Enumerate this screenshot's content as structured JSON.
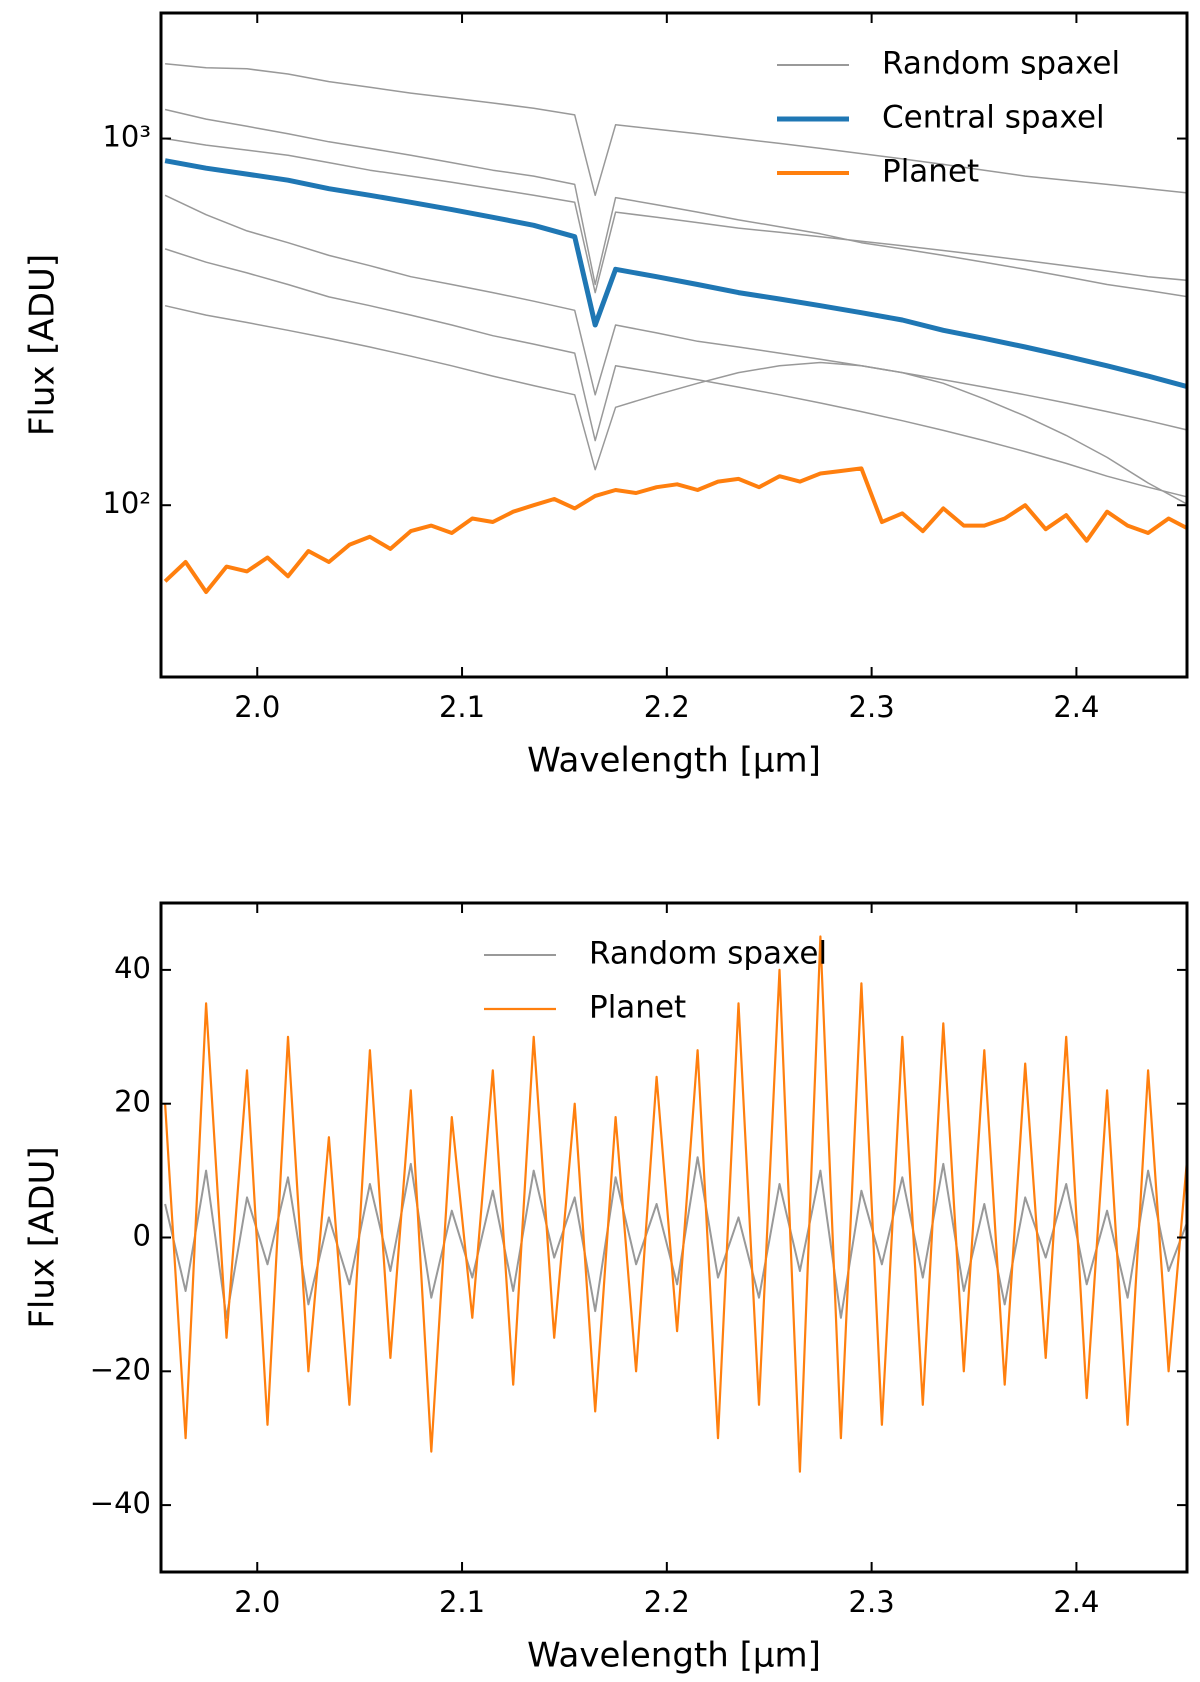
{
  "chart_data": [
    {
      "type": "line",
      "ylabel": "Flux [ADU]",
      "xlabel": "Wavelength [µm]",
      "log_y": true,
      "legend": "upper right",
      "xlim": [
        1.953,
        2.454
      ],
      "ylim": [
        34,
        2200
      ],
      "xticks": [
        {
          "value": 2,
          "label": "2.0"
        },
        2.1,
        2.2,
        2.3,
        2.4
      ],
      "yticks": [
        {
          "value": 100,
          "label": "10²"
        },
        {
          "value": 1000,
          "label": "10³"
        }
      ],
      "x": [
        1.955,
        1.975,
        1.995,
        2.015,
        2.035,
        2.055,
        2.075,
        2.095,
        2.115,
        2.135,
        2.155,
        2.165,
        2.175,
        2.195,
        2.215,
        2.235,
        2.255,
        2.275,
        2.295,
        2.315,
        2.335,
        2.355,
        2.375,
        2.395,
        2.415,
        2.435,
        2.455
      ],
      "series": [
        {
          "name": "Random spaxel",
          "color": "#999999",
          "values": [
            [
              1600,
              1560,
              1550,
              1500,
              1430,
              1380,
              1330,
              1290,
              1250,
              1210,
              1160,
              700,
              1090,
              1060,
              1030,
              1000,
              970,
              940,
              910,
              880,
              850,
              820,
              790,
              770,
              750,
              730,
              710
            ],
            [
              1200,
              1130,
              1080,
              1030,
              980,
              940,
              900,
              860,
              820,
              790,
              750,
              400,
              690,
              660,
              630,
              600,
              575,
              550,
              520,
              500,
              480,
              460,
              440,
              420,
              400,
              385,
              370
            ],
            [
              1000,
              960,
              930,
              900,
              860,
              820,
              790,
              760,
              730,
              700,
              670,
              380,
              630,
              610,
              590,
              570,
              555,
              540,
              525,
              510,
              495,
              480,
              465,
              450,
              435,
              420,
              410
            ],
            [
              700,
              620,
              560,
              520,
              480,
              450,
              420,
              400,
              380,
              360,
              340,
              200,
              310,
              295,
              280,
              270,
              260,
              250,
              240,
              230,
              220,
              210,
              200,
              190,
              180,
              170,
              160
            ],
            [
              500,
              460,
              430,
              400,
              370,
              350,
              330,
              310,
              290,
              275,
              260,
              150,
              240,
              230,
              220,
              210,
              200,
              190,
              180,
              170,
              160,
              150,
              140,
              130,
              120,
              112,
              105
            ],
            [
              350,
              330,
              315,
              300,
              285,
              270,
              255,
              240,
              225,
              212,
              200,
              125,
              185,
              200,
              215,
              230,
              240,
              245,
              240,
              230,
              215,
              195,
              175,
              155,
              135,
              115,
              100
            ]
          ]
        },
        {
          "name": "Central spaxel",
          "color": "#1f77b4",
          "values": [
            870,
            830,
            800,
            770,
            730,
            700,
            670,
            640,
            610,
            580,
            540,
            310,
            440,
            420,
            400,
            380,
            365,
            350,
            335,
            320,
            300,
            285,
            270,
            255,
            240,
            225,
            210
          ]
        },
        {
          "name": "Planet",
          "color": "#ff7f0e",
          "x": [
            1.955,
            1.965,
            1.975,
            1.985,
            1.995,
            2.005,
            2.015,
            2.025,
            2.035,
            2.045,
            2.055,
            2.065,
            2.075,
            2.085,
            2.095,
            2.105,
            2.115,
            2.125,
            2.135,
            2.145,
            2.155,
            2.165,
            2.175,
            2.185,
            2.195,
            2.205,
            2.215,
            2.225,
            2.235,
            2.245,
            2.255,
            2.265,
            2.275,
            2.285,
            2.295,
            2.305,
            2.315,
            2.325,
            2.335,
            2.345,
            2.355,
            2.365,
            2.375,
            2.385,
            2.395,
            2.405,
            2.415,
            2.425,
            2.435,
            2.445,
            2.455
          ],
          "values": [
            62,
            70,
            58,
            68,
            66,
            72,
            64,
            75,
            70,
            78,
            82,
            76,
            85,
            88,
            84,
            92,
            90,
            96,
            100,
            104,
            98,
            106,
            110,
            108,
            112,
            114,
            110,
            116,
            118,
            112,
            120,
            116,
            122,
            124,
            126,
            90,
            95,
            85,
            98,
            88,
            88,
            92,
            100,
            86,
            94,
            80,
            96,
            88,
            84,
            92,
            86
          ]
        }
      ]
    },
    {
      "type": "line",
      "ylabel": "Flux [ADU]",
      "xlabel": "Wavelength [µm]",
      "legend": "upper center",
      "xlim": [
        1.953,
        2.454
      ],
      "ylim": [
        -50,
        50
      ],
      "xticks": [
        {
          "value": 2,
          "label": "2.0"
        },
        2.1,
        2.2,
        2.3,
        2.4
      ],
      "yticks": [
        {
          "value": -40,
          "label": "−40"
        },
        {
          "value": -20,
          "label": "−20"
        },
        0,
        20,
        40
      ],
      "x": [
        1.955,
        1.965,
        1.975,
        1.985,
        1.995,
        2.005,
        2.015,
        2.025,
        2.035,
        2.045,
        2.055,
        2.065,
        2.075,
        2.085,
        2.095,
        2.105,
        2.115,
        2.125,
        2.135,
        2.145,
        2.155,
        2.165,
        2.175,
        2.185,
        2.195,
        2.205,
        2.215,
        2.225,
        2.235,
        2.245,
        2.255,
        2.265,
        2.275,
        2.285,
        2.295,
        2.305,
        2.315,
        2.325,
        2.335,
        2.345,
        2.355,
        2.365,
        2.375,
        2.385,
        2.395,
        2.405,
        2.415,
        2.425,
        2.435,
        2.445,
        2.455
      ],
      "series": [
        {
          "name": "Random spaxel",
          "color": "#999999",
          "values": [
            5,
            -8,
            10,
            -12,
            6,
            -4,
            9,
            -10,
            3,
            -7,
            8,
            -5,
            11,
            -9,
            4,
            -6,
            7,
            -8,
            10,
            -3,
            6,
            -11,
            9,
            -4,
            5,
            -7,
            12,
            -6,
            3,
            -9,
            8,
            -5,
            10,
            -12,
            7,
            -4,
            9,
            -6,
            11,
            -8,
            5,
            -10,
            6,
            -3,
            8,
            -7,
            4,
            -9,
            10,
            -5,
            3
          ]
        },
        {
          "name": "Planet",
          "color": "#ff7f0e",
          "values": [
            20,
            -30,
            35,
            -15,
            25,
            -28,
            30,
            -20,
            15,
            -25,
            28,
            -18,
            22,
            -32,
            18,
            -12,
            25,
            -22,
            30,
            -15,
            20,
            -26,
            18,
            -20,
            24,
            -14,
            28,
            -30,
            35,
            -25,
            40,
            -35,
            45,
            -30,
            38,
            -28,
            30,
            -25,
            32,
            -20,
            28,
            -22,
            26,
            -18,
            30,
            -24,
            22,
            -28,
            25,
            -20,
            15
          ]
        }
      ]
    }
  ]
}
